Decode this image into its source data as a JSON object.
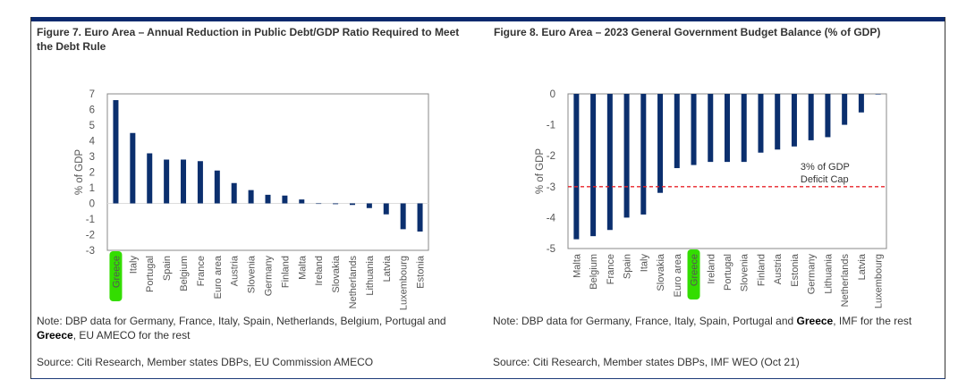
{
  "chart_data": [
    {
      "type": "bar",
      "title": "Figure 7. Euro Area – Annual Reduction in Public Debt/GDP Ratio Required to Meet the Debt Rule",
      "xlabel": "",
      "ylabel": "% of GDP",
      "ylim": [
        -3,
        7
      ],
      "yticks": [
        7,
        6,
        5,
        4,
        3,
        2,
        1,
        0,
        -1,
        -2,
        -3
      ],
      "grid": false,
      "bar_color": "#0b2f6e",
      "highlighted_category": "Greece",
      "highlight_color": "#33dd00",
      "categories": [
        "Greece",
        "Italy",
        "Portugal",
        "Spain",
        "Belgium",
        "France",
        "Euro area",
        "Austria",
        "Slovenia",
        "Germany",
        "Finland",
        "Malta",
        "Ireland",
        "Slovakia",
        "Netherlands",
        "Lithuania",
        "Latvia",
        "Luxembourg",
        "Estonia"
      ],
      "values": [
        6.6,
        4.5,
        3.2,
        2.8,
        2.8,
        2.7,
        2.1,
        1.3,
        0.85,
        0.55,
        0.5,
        0.25,
        -0.02,
        -0.05,
        -0.1,
        -0.3,
        -0.7,
        -1.65,
        -1.8
      ],
      "note_prefix": "Note: DBP data for Germany, France, Italy, Spain, Netherlands, Belgium, Portugal and",
      "note_bold": "Greece",
      "note_suffix": ", EU AMECO for the rest",
      "source": "Source: Citi Research, Member states DBPs, EU Commission AMECO"
    },
    {
      "type": "bar",
      "title": "Figure 8. Euro Area – 2023 General Government Budget Balance (% of GDP)",
      "xlabel": "",
      "ylabel": "% of GDP",
      "ylim": [
        -5,
        0
      ],
      "yticks": [
        0,
        -1,
        -2,
        -3,
        -4,
        -5
      ],
      "grid": false,
      "bar_color": "#0b2f6e",
      "highlighted_category": "Greece",
      "highlight_color": "#33dd00",
      "categories": [
        "Malta",
        "Belgium",
        "France",
        "Spain",
        "Italy",
        "Slovakia",
        "Euro area",
        "Greece",
        "Ireland",
        "Portugal",
        "Slovenia",
        "Finland",
        "Austria",
        "Estonia",
        "Germany",
        "Lithuania",
        "Netherlands",
        "Latvia",
        "Luxembourg"
      ],
      "values": [
        -4.7,
        -4.6,
        -4.4,
        -4.0,
        -3.9,
        -3.2,
        -2.4,
        -2.3,
        -2.2,
        -2.2,
        -2.2,
        -1.9,
        -1.8,
        -1.7,
        -1.5,
        -1.4,
        -1.0,
        -0.6,
        0.0
      ],
      "reference_line": {
        "value": -3,
        "color": "#e8232a",
        "style": "dashed",
        "label_line1": "3% of GDP",
        "label_line2": "Deficit Cap"
      },
      "note_prefix": "Note: DBP data for Germany, France, Italy, Spain, Portugal and ",
      "note_bold": "Greece",
      "note_suffix": ", IMF for the rest",
      "source": "Source: Citi Research, Member states DBPs, IMF WEO (Oct 21)"
    }
  ]
}
